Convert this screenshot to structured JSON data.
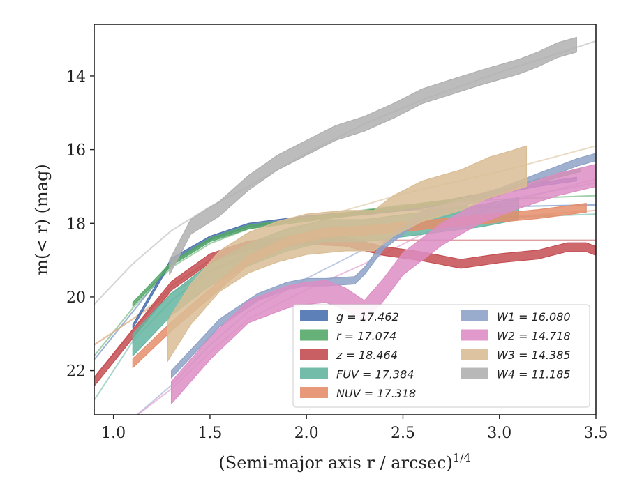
{
  "chart_data": {
    "type": "line",
    "title": "",
    "xlabel": "(Semi-major axis r / arcsec)",
    "xlabel_superscript": "1/4",
    "ylabel": "m(< r) (mag)",
    "xlim": [
      0.9,
      3.5
    ],
    "ylim": [
      23.2,
      12.6
    ],
    "y_inverted": true,
    "x_ticks": [
      "1.0",
      "1.5",
      "2.0",
      "2.5",
      "3.0",
      "3.5"
    ],
    "y_ticks": [
      "14",
      "16",
      "18",
      "20",
      "22"
    ],
    "grid": false,
    "legend_position": "lower-right",
    "series": [
      {
        "name": "g = 17.462",
        "color": "#4c72b0",
        "x": [
          1.1,
          1.3,
          1.5,
          1.7,
          2.0,
          2.3,
          2.6,
          2.9,
          3.2,
          3.4
        ],
        "y": [
          20.8,
          19.0,
          18.4,
          18.05,
          17.85,
          17.72,
          17.55,
          17.25,
          16.95,
          16.8
        ],
        "band": 0.05,
        "model_x": [
          0.9,
          1.1,
          1.3,
          1.5,
          1.7,
          2.0,
          2.5,
          3.0,
          3.5
        ],
        "model_y": [
          21.7,
          20.4,
          19.1,
          18.45,
          18.1,
          17.85,
          17.65,
          17.55,
          17.5
        ]
      },
      {
        "name": "r = 17.074",
        "color": "#55a868",
        "x": [
          1.1,
          1.3,
          1.5,
          1.7,
          2.0,
          2.3,
          2.6,
          2.9,
          3.2,
          3.42
        ],
        "y": [
          20.2,
          19.1,
          18.45,
          18.1,
          17.9,
          17.7,
          17.5,
          17.3,
          16.85,
          16.55
        ],
        "band": 0.05,
        "model_x": [
          0.9,
          1.1,
          1.3,
          1.5,
          1.7,
          2.0,
          2.5,
          3.0,
          3.5
        ],
        "model_y": [
          21.6,
          20.3,
          19.2,
          18.55,
          18.15,
          17.85,
          17.5,
          17.35,
          17.25
        ]
      },
      {
        "name": "z = 18.464",
        "color": "#c44e52",
        "x": [
          0.9,
          1.1,
          1.3,
          1.5,
          1.7,
          2.0,
          2.2,
          2.4,
          2.6,
          2.8,
          3.0,
          3.2,
          3.35,
          3.45,
          3.5
        ],
        "y": [
          22.3,
          21.0,
          19.7,
          18.95,
          18.6,
          18.45,
          18.5,
          18.75,
          18.9,
          19.1,
          18.95,
          18.85,
          18.65,
          18.65,
          18.75
        ],
        "band": 0.12,
        "model_x": [
          0.9,
          1.1,
          1.3,
          1.5,
          1.7,
          2.0,
          2.5,
          3.0,
          3.5
        ],
        "model_y": [
          22.2,
          20.9,
          19.7,
          19.0,
          18.6,
          18.47,
          18.46,
          18.46,
          18.46
        ]
      },
      {
        "name": "FUV = 17.384",
        "color": "#64b5a0",
        "x": [
          1.1,
          1.3,
          1.5,
          1.7,
          1.9,
          2.1,
          2.3,
          2.6,
          2.9,
          3.1
        ],
        "y": [
          21.3,
          20.2,
          19.4,
          18.85,
          18.45,
          18.2,
          18.2,
          18.0,
          17.8,
          17.6
        ],
        "band": 0.3,
        "model_x": [
          0.9,
          1.1,
          1.3,
          1.5,
          1.7,
          2.0,
          2.5,
          3.0,
          3.5
        ],
        "model_y": [
          22.8,
          21.2,
          20.1,
          19.3,
          18.8,
          18.35,
          18.0,
          17.85,
          17.75
        ]
      },
      {
        "name": "NUV = 17.318",
        "color": "#e58e6c",
        "x": [
          1.1,
          1.3,
          1.5,
          1.7,
          1.9,
          2.1,
          2.3,
          2.6,
          2.9,
          3.2,
          3.45
        ],
        "y": [
          21.8,
          20.8,
          19.9,
          19.0,
          18.5,
          18.25,
          18.2,
          18.05,
          17.9,
          17.75,
          17.58
        ],
        "band": 0.12,
        "model_x": [
          0.9,
          1.1,
          1.3,
          1.5,
          1.7,
          2.0,
          2.5,
          3.0,
          3.5
        ],
        "model_y": [
          21.3,
          20.6,
          19.9,
          19.3,
          18.9,
          18.5,
          18.15,
          17.85,
          17.65
        ]
      },
      {
        "name": "W1 = 16.080",
        "color": "#8fa3c8",
        "x": [
          1.3,
          1.55,
          1.75,
          1.9,
          2.0,
          2.1,
          2.25,
          2.3,
          2.4,
          2.5,
          2.6,
          2.8,
          3.0,
          3.2,
          3.4,
          3.5
        ],
        "y": [
          22.1,
          20.7,
          20.0,
          19.7,
          19.6,
          19.6,
          19.55,
          19.3,
          18.6,
          18.2,
          17.75,
          17.45,
          17.15,
          16.75,
          16.35,
          16.2
        ],
        "band": 0.1,
        "model_x": [
          1.1,
          1.3,
          1.5,
          1.7,
          2.0,
          2.3,
          2.6,
          3.0,
          3.5
        ],
        "model_y": [
          23.3,
          22.4,
          21.3,
          20.4,
          19.5,
          18.7,
          18.0,
          17.4,
          16.9
        ]
      },
      {
        "name": "W2 = 14.718",
        "color": "#dd8ec4",
        "x": [
          1.3,
          1.5,
          1.7,
          1.9,
          2.0,
          2.1,
          2.2,
          2.3,
          2.4,
          2.5,
          2.7,
          2.9,
          3.1,
          3.3,
          3.5
        ],
        "y": [
          22.6,
          21.4,
          20.4,
          20.0,
          19.9,
          19.85,
          20.05,
          20.4,
          19.8,
          19.1,
          18.3,
          17.7,
          17.3,
          16.95,
          16.7
        ],
        "band": 0.3,
        "model_x": [
          1.1,
          1.3,
          1.5,
          1.7,
          2.0,
          2.3,
          2.6,
          3.0,
          3.5
        ],
        "model_y": [
          23.3,
          22.5,
          21.5,
          20.6,
          19.8,
          19.1,
          18.3,
          17.5,
          16.8
        ]
      },
      {
        "name": "W3 = 14.385",
        "color": "#d9bd95",
        "x": [
          1.28,
          1.4,
          1.55,
          1.7,
          1.85,
          2.0,
          2.2,
          2.35,
          2.45,
          2.6,
          2.8,
          2.95,
          3.05,
          3.14
        ],
        "y": [
          21.2,
          20.2,
          19.3,
          18.8,
          18.5,
          18.3,
          18.2,
          18.2,
          17.8,
          17.4,
          17.1,
          16.75,
          16.6,
          16.45
        ],
        "band": 0.55,
        "model_x": [
          0.9,
          1.1,
          1.3,
          1.5,
          1.7,
          2.0,
          2.5,
          3.0,
          3.5
        ],
        "model_y": [
          21.3,
          20.6,
          19.8,
          19.1,
          18.55,
          17.95,
          17.2,
          16.6,
          15.9
        ]
      },
      {
        "name": "W4 = 11.185",
        "color": "#b0b0b0",
        "x": [
          1.29,
          1.4,
          1.55,
          1.7,
          1.85,
          2.0,
          2.15,
          2.3,
          2.45,
          2.6,
          2.75,
          2.9,
          3.0,
          3.1,
          3.2,
          3.3,
          3.4
        ],
        "y": [
          19.2,
          18.1,
          17.6,
          16.9,
          16.35,
          15.95,
          15.55,
          15.3,
          14.95,
          14.55,
          14.3,
          14.05,
          13.9,
          13.75,
          13.55,
          13.3,
          13.15
        ],
        "band": 0.2,
        "model_x": [
          0.9,
          1.1,
          1.3,
          1.5,
          1.7,
          2.0,
          2.3,
          2.6,
          3.0,
          3.3,
          3.5
        ],
        "model_y": [
          20.2,
          19.1,
          18.2,
          17.55,
          17.0,
          16.1,
          15.3,
          14.65,
          13.9,
          13.4,
          13.05
        ]
      }
    ]
  }
}
